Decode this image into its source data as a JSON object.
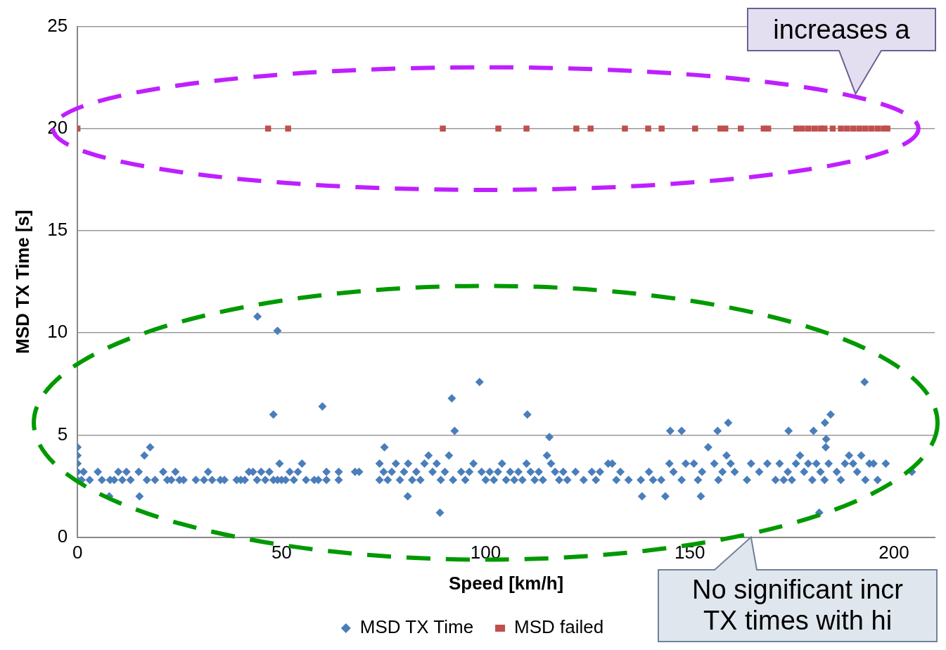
{
  "chart_data": {
    "type": "scatter",
    "xlabel": "Speed [km/h]",
    "ylabel": "MSD TX Time [s]",
    "xlim": [
      0,
      210
    ],
    "xticks": [
      0,
      50,
      100,
      150,
      200
    ],
    "ylim": [
      0,
      25
    ],
    "yticks": [
      0,
      5,
      10,
      15,
      20,
      25
    ],
    "grid": "y",
    "legend": "bottom",
    "annotations": [
      "increases a",
      "No significant incr\nTX times with hi"
    ],
    "series": [
      {
        "name": "MSD TX Time",
        "color": "#4a7ebb",
        "marker": "diamond",
        "x": [
          0,
          0,
          0,
          0,
          0,
          1,
          1.5,
          3,
          5,
          6,
          7.8,
          8,
          9,
          10,
          11,
          12,
          13,
          15,
          15.2,
          16.4,
          17,
          17.8,
          19,
          21,
          22,
          23,
          24,
          25,
          26,
          29,
          31,
          32,
          33,
          35,
          36,
          39,
          40,
          41,
          42,
          43,
          44,
          44.1,
          45,
          46,
          47,
          48,
          48,
          49,
          49,
          49.5,
          50,
          51,
          52,
          53,
          54,
          55,
          56,
          58,
          59,
          60,
          61,
          61,
          64,
          64,
          68,
          69,
          74,
          74,
          75,
          75.2,
          76,
          77,
          78,
          79,
          80,
          80.9,
          81,
          82,
          83,
          84,
          85,
          86,
          87,
          88,
          88.8,
          89,
          90,
          91,
          91.7,
          92,
          92.4,
          94,
          95,
          96,
          97,
          98.5,
          99,
          100,
          101,
          102,
          103,
          104,
          105,
          106,
          107,
          108,
          109,
          110,
          110.2,
          111,
          112,
          113,
          114,
          115,
          115.6,
          116,
          117,
          118,
          119,
          120,
          122,
          124,
          126,
          127,
          128,
          130,
          131,
          132,
          133,
          135,
          138,
          138.3,
          140,
          141,
          143,
          144,
          145,
          145.2,
          146,
          148,
          148,
          149,
          151,
          152,
          152.7,
          153,
          154.5,
          156,
          156.8,
          157,
          158,
          159,
          159.4,
          160,
          161,
          164,
          165,
          167,
          169,
          171,
          172,
          173,
          174,
          174.2,
          175,
          176,
          177,
          178,
          179,
          180,
          180.3,
          181,
          181.7,
          182,
          183,
          183.1,
          183.3,
          183.4,
          184,
          184.5,
          186,
          187,
          188,
          189,
          190,
          191,
          192,
          192.8,
          193,
          194,
          195,
          196,
          198,
          204.4
        ],
        "values": [
          2.8,
          3.2,
          3.6,
          4.0,
          4.4,
          2.8,
          3.2,
          2.8,
          3.2,
          2.8,
          2.0,
          2.8,
          2.8,
          3.2,
          2.8,
          3.2,
          2.8,
          3.2,
          2.0,
          4.0,
          2.8,
          4.4,
          2.8,
          3.2,
          2.8,
          2.8,
          3.2,
          2.8,
          2.8,
          2.8,
          2.8,
          3.2,
          2.8,
          2.8,
          2.8,
          2.8,
          2.8,
          2.8,
          3.2,
          3.2,
          2.8,
          10.8,
          3.2,
          2.8,
          3.2,
          2.8,
          6.0,
          2.8,
          10.1,
          3.6,
          2.8,
          2.8,
          3.2,
          2.8,
          3.2,
          3.6,
          2.8,
          2.8,
          2.8,
          6.4,
          3.2,
          2.8,
          3.2,
          2.8,
          3.2,
          3.2,
          3.6,
          2.8,
          3.2,
          4.4,
          2.8,
          3.2,
          3.6,
          2.8,
          3.2,
          2.0,
          3.6,
          2.8,
          3.2,
          2.8,
          3.6,
          4.0,
          3.2,
          3.6,
          1.2,
          2.8,
          3.2,
          4.0,
          6.8,
          2.8,
          5.2,
          3.2,
          2.8,
          3.2,
          3.6,
          7.6,
          3.2,
          2.8,
          3.2,
          2.8,
          3.2,
          3.6,
          2.8,
          3.2,
          2.8,
          3.2,
          2.8,
          3.6,
          6.0,
          3.2,
          2.8,
          3.2,
          2.8,
          4.0,
          4.9,
          3.6,
          3.2,
          2.8,
          3.2,
          2.8,
          3.2,
          2.8,
          3.2,
          2.8,
          3.2,
          3.6,
          3.6,
          2.8,
          3.2,
          2.8,
          2.8,
          2.0,
          3.2,
          2.8,
          2.8,
          2.0,
          3.6,
          5.2,
          3.2,
          2.8,
          5.2,
          3.6,
          3.6,
          2.8,
          2.0,
          3.2,
          4.4,
          3.6,
          5.2,
          2.8,
          3.2,
          4.0,
          5.6,
          3.6,
          3.2,
          2.8,
          3.6,
          3.2,
          3.6,
          2.8,
          3.6,
          2.8,
          3.2,
          5.2,
          2.8,
          3.6,
          4.0,
          3.2,
          3.6,
          2.8,
          5.2,
          3.6,
          1.2,
          3.2,
          2.8,
          5.6,
          4.4,
          4.8,
          3.6,
          6.0,
          3.2,
          2.8,
          3.6,
          4.0,
          3.6,
          3.2,
          4.0,
          7.6,
          2.8,
          3.6,
          3.6,
          2.8,
          3.6,
          3.2
        ]
      },
      {
        "name": "MSD failed",
        "color": "#c0504d",
        "marker": "square",
        "x": [
          0,
          46.7,
          51.6,
          89.5,
          103.1,
          110,
          122.2,
          125.7,
          134.1,
          139.8,
          143.1,
          151.3,
          157.5,
          158.7,
          162.5,
          168.1,
          169.2,
          176.1,
          177.5,
          179,
          180.5,
          182,
          183,
          185,
          187,
          188.5,
          190,
          191.5,
          193,
          194.5,
          196,
          197.5,
          198.4
        ],
        "values": [
          20,
          20,
          20,
          20,
          20,
          20,
          20,
          20,
          20,
          20,
          20,
          20,
          20,
          20,
          20,
          20,
          20,
          20,
          20,
          20,
          20,
          20,
          20,
          20,
          20,
          20,
          20,
          20,
          20,
          20,
          20,
          20,
          20
        ]
      }
    ]
  }
}
